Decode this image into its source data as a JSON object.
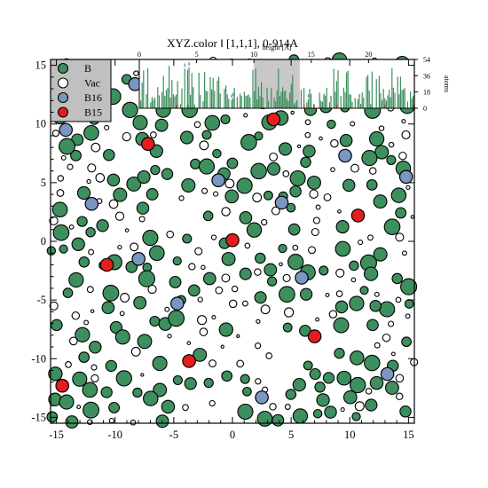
{
  "chart_data": {
    "type": "scatter",
    "title": "XYZ.color ‖  [1,1,1], 0-914A",
    "xlim": [
      -15.5,
      15.5
    ],
    "ylim": [
      -15.5,
      15.5
    ],
    "x_ticks": [
      "-15",
      "-10",
      "-5",
      "0",
      "5",
      "10",
      "15"
    ],
    "y_ticks": [
      "-15",
      "-10",
      "-5",
      "0",
      "5",
      "10",
      "15"
    ],
    "grid": false,
    "legend": {
      "position": "top-left",
      "entries": [
        {
          "name": "B",
          "color": "#3d8f5e"
        },
        {
          "name": "Vac",
          "color": "#ffffff"
        },
        {
          "name": "B16",
          "color": "#7a96c2"
        },
        {
          "name": "B15",
          "color": "#e41d1d"
        }
      ]
    },
    "series": [
      {
        "name": "B15",
        "color": "#e41d1d",
        "points": [
          [
            -7.2,
            8.3
          ],
          [
            3.5,
            10.4
          ],
          [
            10.7,
            2.2
          ],
          [
            0,
            0.1
          ],
          [
            -10.7,
            -2.0
          ],
          [
            7.0,
            -8.1
          ],
          [
            -3.7,
            -10.2
          ],
          [
            -14.5,
            -12.3
          ]
        ]
      },
      {
        "name": "B16",
        "color": "#7a96c2",
        "points": [
          [
            -1.2,
            5.2
          ],
          [
            9.6,
            7.3
          ],
          [
            -12.0,
            3.2
          ],
          [
            -4.7,
            -5.3
          ],
          [
            5.9,
            -3.1
          ],
          [
            2.5,
            -13.3
          ],
          [
            13.2,
            -11.3
          ],
          [
            -8.3,
            13.4
          ],
          [
            -14.2,
            9.5
          ],
          [
            14.8,
            5.5
          ],
          [
            -8.0,
            -1.5
          ],
          [
            4.2,
            3.3
          ]
        ]
      }
    ],
    "inset": {
      "type": "bar",
      "xlabel": "height [Å]",
      "ylabel": "atoms",
      "xlim": [
        0,
        24
      ],
      "ylim": [
        0,
        54
      ],
      "x_ticks": [
        "0",
        "5",
        "10",
        "15",
        "20"
      ],
      "y_ticks": [
        "0",
        "18",
        "36",
        "54"
      ],
      "highlight_range": [
        10,
        14
      ]
    }
  }
}
